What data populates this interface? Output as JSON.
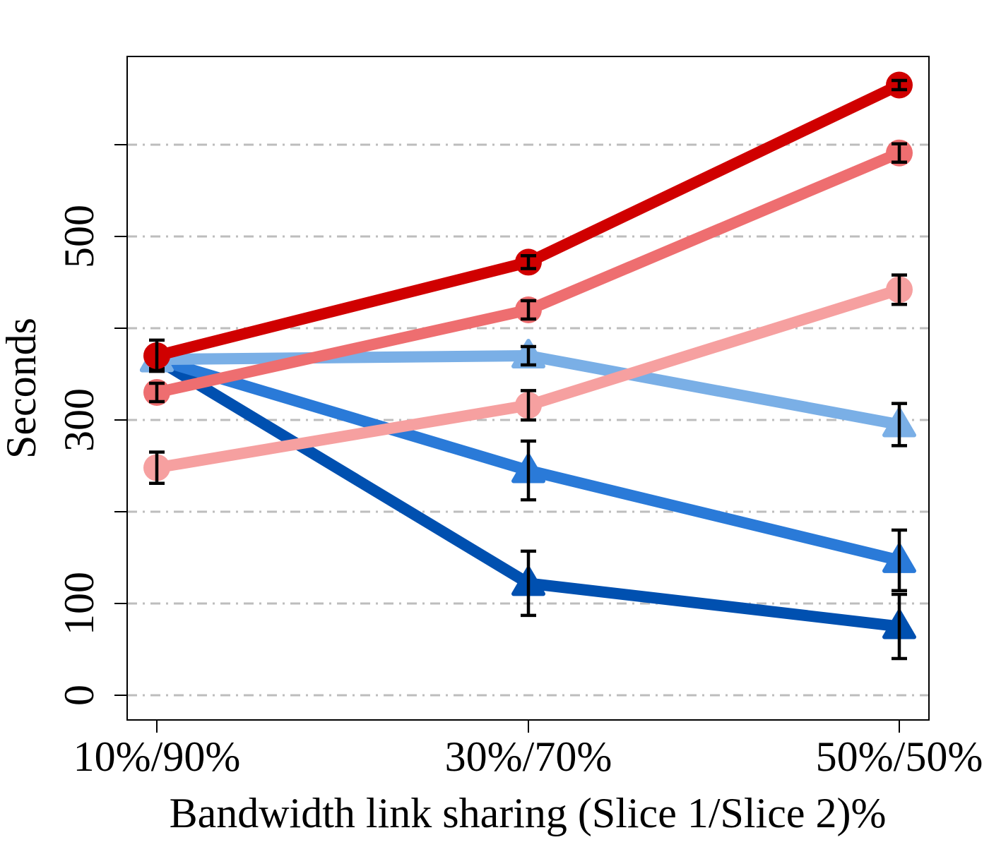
{
  "chart_data": {
    "type": "line",
    "xlabel": "Bandwidth link sharing (Slice 1/Slice 2)%",
    "ylabel": "Seconds",
    "categories": [
      "10%/90%",
      "30%/70%",
      "50%/50%"
    ],
    "ylim": [
      -25,
      700
    ],
    "yticks": [
      0,
      100,
      300,
      500
    ],
    "gridlines": [
      0,
      100,
      200,
      300,
      400,
      500,
      600
    ],
    "grid": true,
    "series": [
      {
        "color": "#d00000",
        "marker": "circle",
        "values": [
          370,
          472,
          665
        ],
        "errors": [
          17,
          7,
          5
        ]
      },
      {
        "color": "#ee6e70",
        "marker": "circle",
        "values": [
          330,
          420,
          591
        ],
        "errors": [
          10,
          10,
          10
        ]
      },
      {
        "color": "#f6a0a0",
        "marker": "circle",
        "values": [
          248,
          316,
          442
        ],
        "errors": [
          17,
          16,
          16
        ]
      },
      {
        "color": "#7aafe6",
        "marker": "triangle",
        "values": [
          366,
          370,
          295
        ],
        "errors": [
          10,
          10,
          23
        ]
      },
      {
        "color": "#2a7ad8",
        "marker": "triangle",
        "values": [
          366,
          245,
          147
        ],
        "errors": [
          10,
          32,
          33
        ]
      },
      {
        "color": "#0050b0",
        "marker": "triangle",
        "values": [
          366,
          122,
          75
        ],
        "errors": [
          10,
          35,
          35
        ]
      }
    ]
  }
}
